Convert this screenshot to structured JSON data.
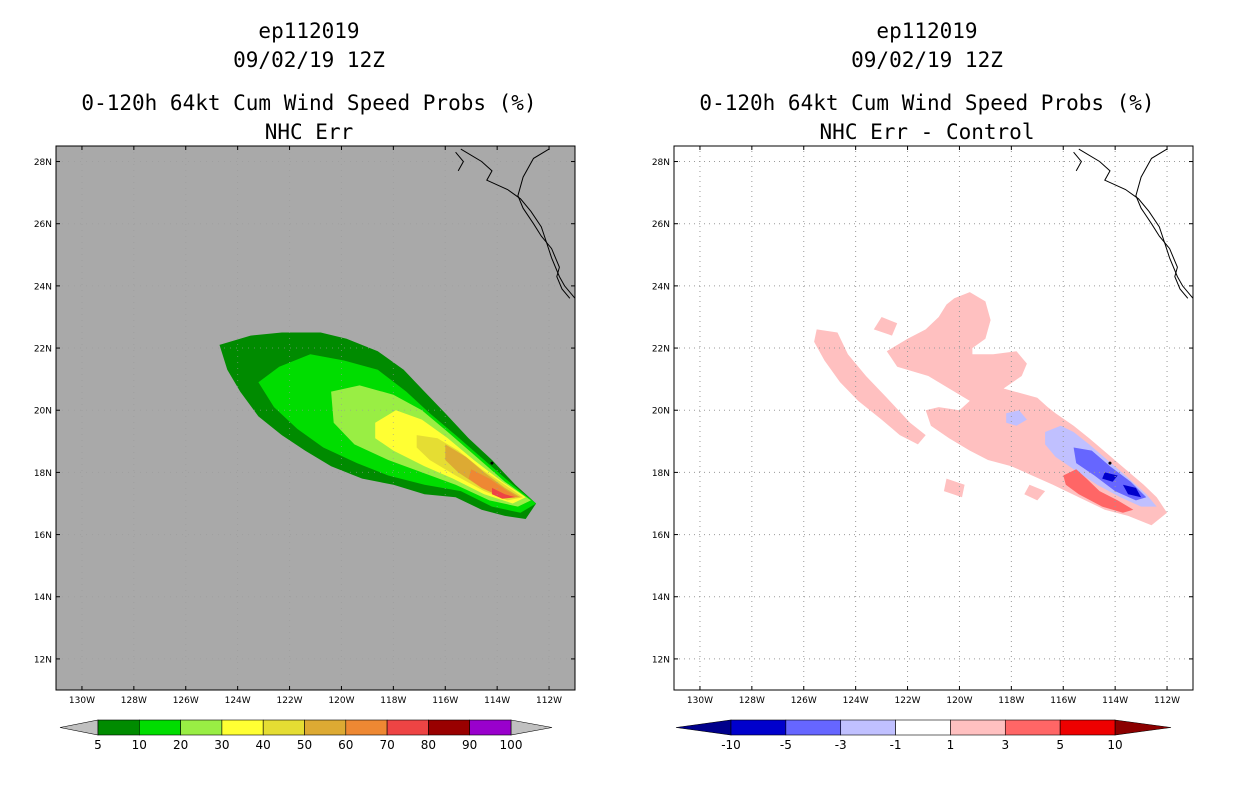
{
  "colors": {
    "land_bg": "#a9a9a9",
    "coast": "#000000",
    "grid": "#9a9a9a"
  },
  "panels": [
    {
      "id": "left",
      "title_line1": "ep112019",
      "title_line2": "09/02/19 12Z",
      "title_line3": "0-120h 64kt Cum Wind Speed Probs (%)",
      "title_line4": "NHC Err",
      "background": "#a9a9a9",
      "grid": false,
      "lat_ticks": [
        "28N",
        "26N",
        "24N",
        "22N",
        "20N",
        "18N",
        "16N",
        "14N",
        "12N"
      ],
      "lon_ticks": [
        "130W",
        "128W",
        "126W",
        "124W",
        "122W",
        "120W",
        "118W",
        "116W",
        "114W",
        "112W"
      ],
      "colorbar": {
        "colors": [
          "#008b00",
          "#00dd00",
          "#99ee44",
          "#ffff33",
          "#e5dd33",
          "#ddaa33",
          "#ee8833",
          "#ee4444",
          "#990000",
          "#9900cc"
        ],
        "labels": [
          "5",
          "10",
          "20",
          "30",
          "40",
          "50",
          "60",
          "70",
          "80",
          "90",
          "100"
        ],
        "low_end": "#c0c0c0",
        "high_end": "#c0c0c0"
      }
    },
    {
      "id": "right",
      "title_line1": "ep112019",
      "title_line2": "09/02/19 12Z",
      "title_line3": "0-120h 64kt Cum Wind Speed Probs (%)",
      "title_line4": "NHC Err - Control",
      "background": "#ffffff",
      "grid": true,
      "lat_ticks": [
        "28N",
        "26N",
        "24N",
        "22N",
        "20N",
        "18N",
        "16N",
        "14N",
        "12N"
      ],
      "lon_ticks": [
        "130W",
        "128W",
        "126W",
        "124W",
        "122W",
        "120W",
        "118W",
        "116W",
        "114W",
        "112W"
      ],
      "colorbar": {
        "colors": [
          "#0000cc",
          "#6666ff",
          "#c0c0ff",
          "#ffffff",
          "#ffc0c0",
          "#ff6666",
          "#ee0000"
        ],
        "labels": [
          "-10",
          "-5",
          "-3",
          "-1",
          "1",
          "3",
          "5",
          "10"
        ],
        "low_end": "#00008b",
        "high_end": "#8b0000"
      }
    }
  ]
}
